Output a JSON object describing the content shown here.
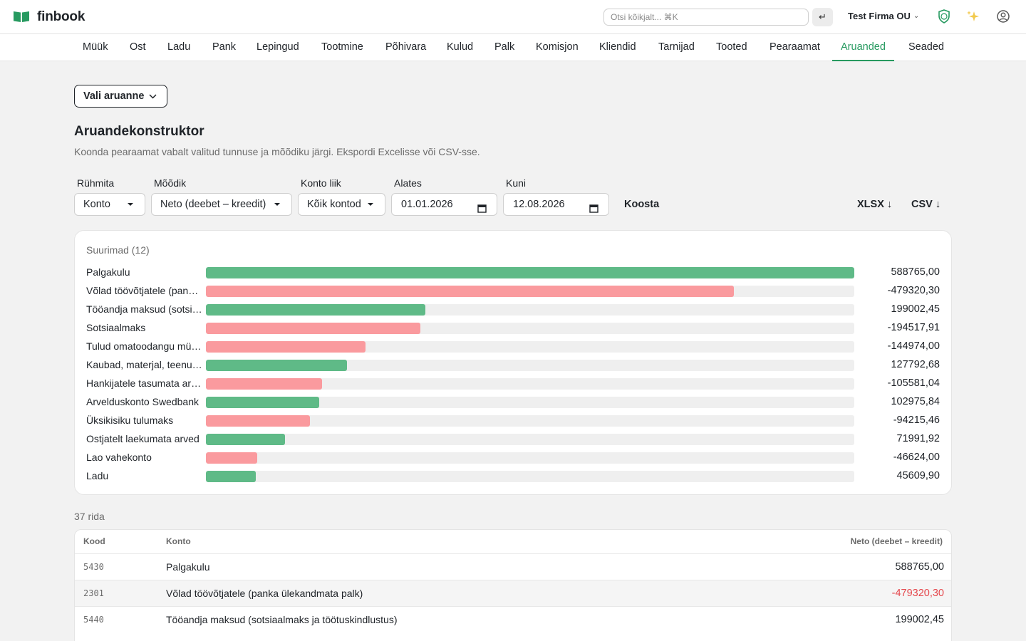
{
  "app": {
    "name": "finbook",
    "brand_color": "#279a60"
  },
  "topbar": {
    "search_placeholder": "Otsi kõikjalt...  ⌘K",
    "enter_icon": "↵",
    "company": "Test Firma OU",
    "icons": [
      "shield-icon",
      "sparkles-icon",
      "user-circle-icon"
    ]
  },
  "nav": [
    {
      "label": "Müük"
    },
    {
      "label": "Ost"
    },
    {
      "label": "Ladu"
    },
    {
      "label": "Pank"
    },
    {
      "label": "Lepingud"
    },
    {
      "label": "Tootmine"
    },
    {
      "label": "Põhivara"
    },
    {
      "label": "Kulud"
    },
    {
      "label": "Palk"
    },
    {
      "label": "Komisjon"
    },
    {
      "label": "Kliendid"
    },
    {
      "label": "Tarnijad"
    },
    {
      "label": "Tooted"
    },
    {
      "label": "Pearaamat"
    },
    {
      "label": "Aruanded",
      "active": true
    },
    {
      "label": "Seaded"
    }
  ],
  "page": {
    "report_button": "Vali aruanne",
    "title": "Aruandekonstruktor",
    "subtitle": "Koonda pearaamat vabalt valitud tunnuse ja mõõdiku järgi. Ekspordi Excelisse või CSV-sse."
  },
  "filters": {
    "group_label": "Rühmita",
    "group_value": "Konto",
    "measure_label": "Mõõdik",
    "measure_value": "Neto (deebet – kreedit)",
    "type_label": "Konto liik",
    "type_value": "Kõik kontod",
    "from_label": "Alates",
    "from_value": "01.01.2026",
    "to_label": "Kuni",
    "to_value": "12.08.2026",
    "build_button": "Koosta",
    "xlsx_button": "XLSX ↓",
    "csv_button": "CSV ↓"
  },
  "chart_data": {
    "type": "bar",
    "orientation": "horizontal",
    "title": "Suurimad (12)",
    "categories": [
      "Palgakulu",
      "Võlad töövõtjatele (panka ülekandmata palk)",
      "Tööandja maksud (sotsiaalmaks ja töötuskindlustus)",
      "Sotsiaalmaks",
      "Tulud omatoodangu müügist",
      "Kaubad, materjal, teenused",
      "Hankijatele tasumata arved",
      "Arvelduskonto Swedbank",
      "Üksikisiku tulumaks",
      "Ostjatelt laekumata arved",
      "Lao vahekonto",
      "Ladu"
    ],
    "values": [
      588765.0,
      -479320.3,
      199002.45,
      -194517.91,
      -144974.0,
      127792.68,
      -105581.04,
      102975.84,
      -94215.46,
      71991.92,
      -46624.0,
      45609.9
    ],
    "value_labels": [
      "588765,00",
      "-479320,30",
      "199002,45",
      "-194517,91",
      "-144974,00",
      "127792,68",
      "-105581,04",
      "102975,84",
      "-94215,46",
      "71991,92",
      "-46624,00",
      "45609,90"
    ],
    "positive_color": "#5fba87",
    "negative_color": "#fa9a9e"
  },
  "table": {
    "row_count": "37 rida",
    "headers": {
      "code": "Kood",
      "account": "Konto",
      "value": "Neto (deebet – kreedit)"
    },
    "rows": [
      {
        "code": "5430",
        "account": "Palgakulu",
        "value": "588765,00",
        "negative": false
      },
      {
        "code": "2301",
        "account": "Võlad töövõtjatele (panka ülekandmata palk)",
        "value": "-479320,30",
        "negative": true
      },
      {
        "code": "5440",
        "account": "Tööandja maksud (sotsiaalmaks ja töötuskindlustus)",
        "value": "199002,45",
        "negative": false
      }
    ],
    "negative_color": "#e5484d"
  }
}
